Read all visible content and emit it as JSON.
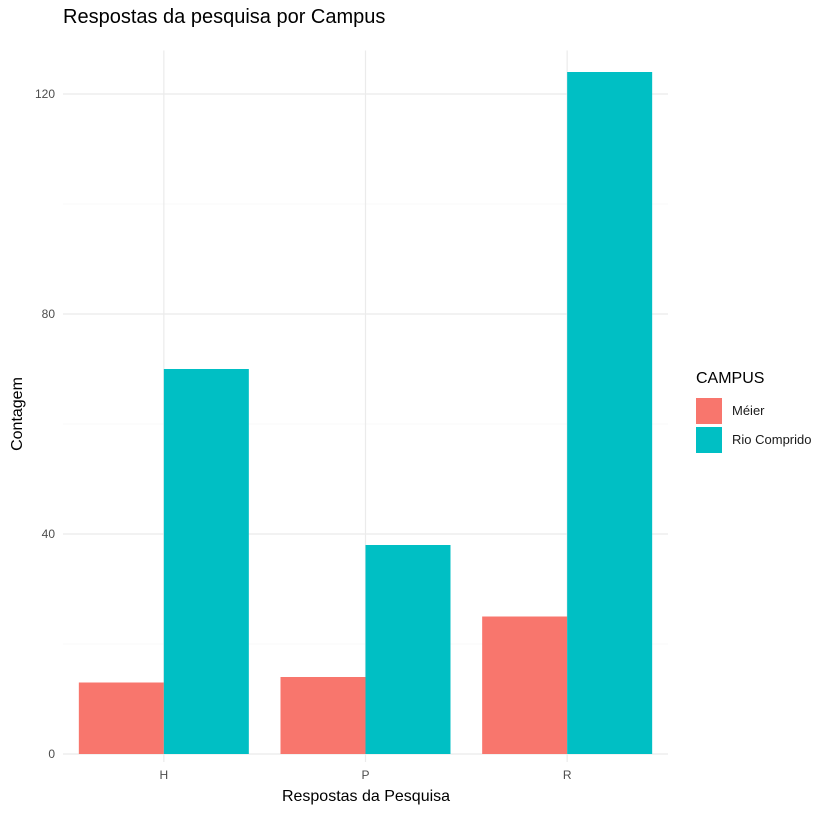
{
  "chart_data": {
    "type": "bar",
    "title": "Respostas da pesquisa por Campus",
    "xlabel": "Respostas da Pesquisa",
    "ylabel": "Contagem",
    "categories": [
      "H",
      "P",
      "R"
    ],
    "ylim": [
      0,
      125
    ],
    "yticks": [
      0,
      40,
      80,
      120
    ],
    "grid": true,
    "legend_title": "CAMPUS",
    "legend_position": "right",
    "series": [
      {
        "name": "Méier",
        "color": "#F8766D",
        "values": [
          13,
          14,
          25
        ]
      },
      {
        "name": "Rio Comprido",
        "color": "#00BFC4",
        "values": [
          70,
          38,
          124
        ]
      }
    ]
  }
}
